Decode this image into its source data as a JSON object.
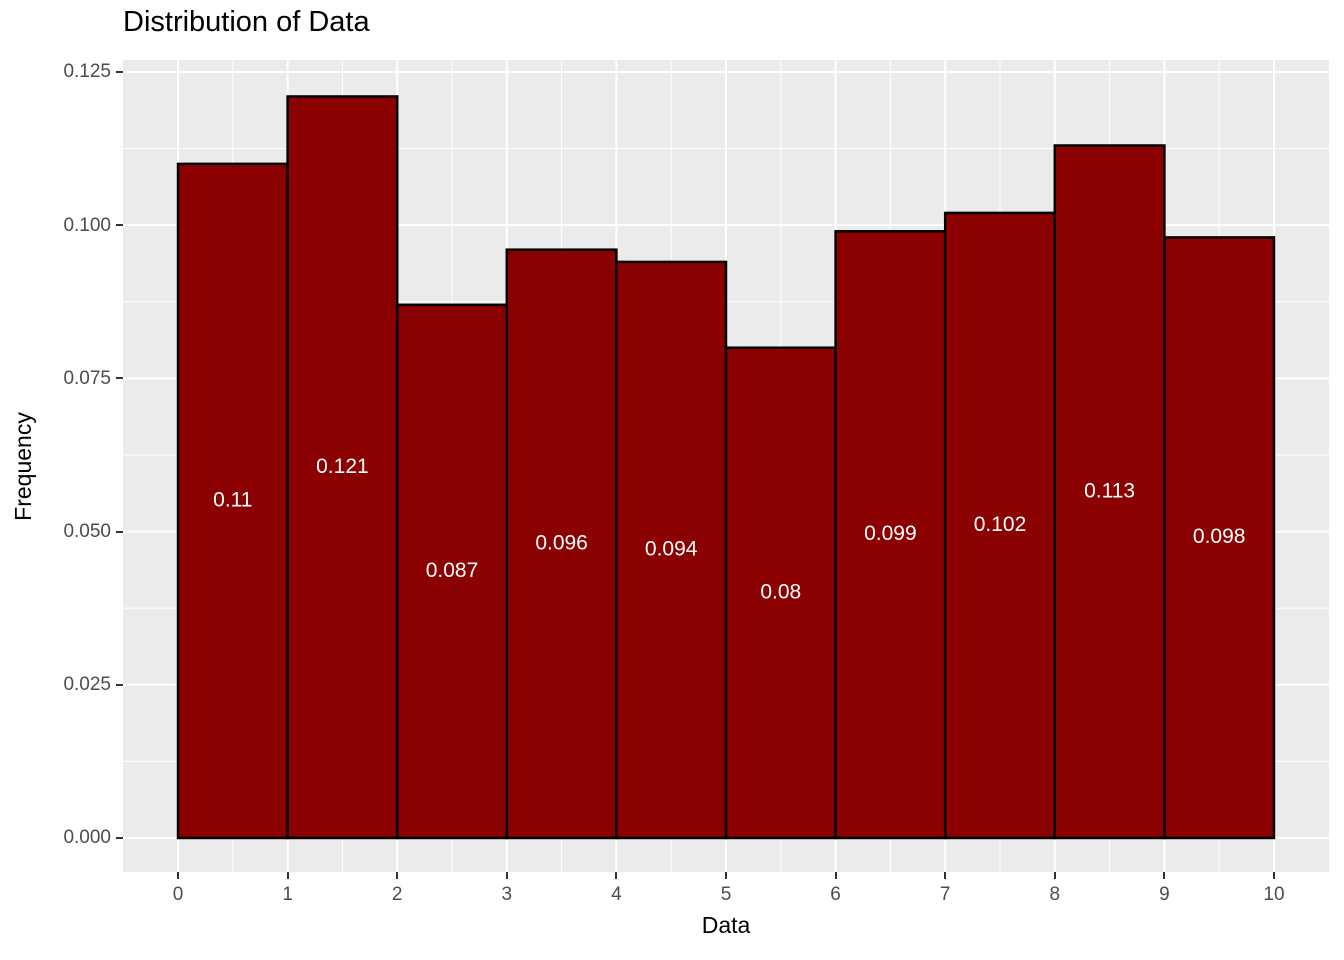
{
  "chart_data": {
    "type": "bar",
    "chart_style": "histogram",
    "title": "Distribution of Data",
    "xlabel": "Data",
    "ylabel": "Frequency",
    "bin_edges": [
      0,
      1,
      2,
      3,
      4,
      5,
      6,
      7,
      8,
      9,
      10
    ],
    "values": [
      0.11,
      0.121,
      0.087,
      0.096,
      0.094,
      0.08,
      0.099,
      0.102,
      0.113,
      0.098
    ],
    "bar_labels": [
      "0.11",
      "0.121",
      "0.087",
      "0.096",
      "0.094",
      "0.08",
      "0.099",
      "0.102",
      "0.113",
      "0.098"
    ],
    "x_tick_labels": [
      "0",
      "1",
      "2",
      "3",
      "4",
      "5",
      "6",
      "7",
      "8",
      "9",
      "10"
    ],
    "x_tick_values": [
      0,
      1,
      2,
      3,
      4,
      5,
      6,
      7,
      8,
      9,
      10
    ],
    "y_tick_labels": [
      "0.000",
      "0.025",
      "0.050",
      "0.075",
      "0.100",
      "0.125"
    ],
    "y_tick_values": [
      0,
      0.025,
      0.05,
      0.075,
      0.1,
      0.125
    ],
    "x_minor_ticks": [
      0.5,
      1.5,
      2.5,
      3.5,
      4.5,
      5.5,
      6.5,
      7.5,
      8.5,
      9.5
    ],
    "y_minor_ticks": [
      0.0125,
      0.0375,
      0.0625,
      0.0875,
      0.1125
    ],
    "xlim": [
      -0.502,
      10.502
    ],
    "ylim": [
      -0.00555,
      0.12695
    ],
    "grid": true,
    "legend": "none",
    "colors": {
      "bar_fill": "#8B0000",
      "bar_stroke": "#000000",
      "panel_bg": "#EBEBEB",
      "grid": "#FFFFFF",
      "bar_label_text": "#FFFFFF",
      "axis_text": "#4D4D4D",
      "tick_mark": "#333333",
      "title_text": "#000000",
      "figure_bg": "#FFFFFF"
    }
  }
}
